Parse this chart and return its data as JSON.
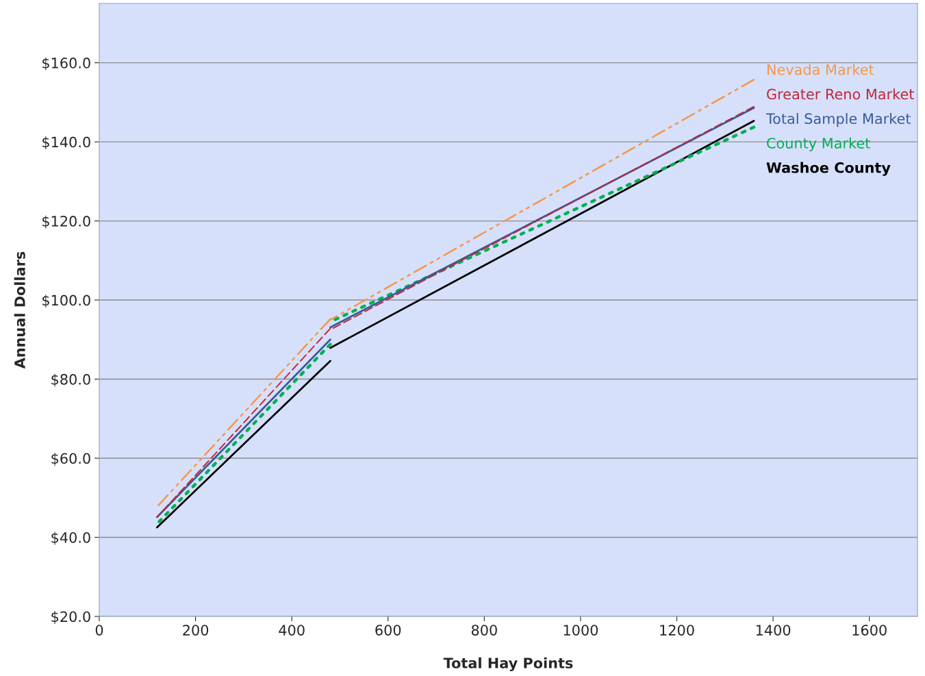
{
  "chart_data": {
    "type": "line",
    "xlabel": "Total Hay Points",
    "ylabel": "Annual Dollars",
    "xlim": [
      0,
      1700
    ],
    "xticks": [
      0,
      200,
      400,
      600,
      800,
      1000,
      1200,
      1400,
      1600
    ],
    "ylim": [
      20,
      175
    ],
    "yticks": [
      {
        "value": 20,
        "label": "$20.0"
      },
      {
        "value": 40,
        "label": "$40.0"
      },
      {
        "value": 60,
        "label": "$60.0"
      },
      {
        "value": 80,
        "label": "$80.0"
      },
      {
        "value": 100,
        "label": "$100.0"
      },
      {
        "value": 120,
        "label": "$120.0"
      },
      {
        "value": 140,
        "label": "$140.0"
      },
      {
        "value": 160,
        "label": "$160.0"
      }
    ],
    "grid": "y",
    "series": [
      {
        "name": "Nevada Market",
        "color": "#f79646",
        "line_style": "dashdot",
        "x": [
          120,
          480,
          480,
          1360
        ],
        "values": [
          47.7,
          95.2,
          95.0,
          155.7
        ]
      },
      {
        "name": "Greater Reno Market",
        "color": "#c0283a",
        "line_style": "dashed",
        "x": [
          120,
          480,
          480,
          1360
        ],
        "values": [
          45.1,
          92.8,
          92.5,
          148.9
        ]
      },
      {
        "name": "Total Sample Market",
        "color": "#3a5a98",
        "line_style": "solid",
        "x": [
          120,
          480,
          480,
          1360
        ],
        "values": [
          45.1,
          90.0,
          93.1,
          148.6
        ]
      },
      {
        "name": "County Market",
        "color": "#00b050",
        "line_style": "dotted",
        "x": [
          120,
          480,
          480,
          1360
        ],
        "values": [
          43.4,
          88.8,
          94.5,
          143.7
        ]
      },
      {
        "name": "Washoe County",
        "color": "#000000",
        "line_style": "solid",
        "x": [
          120,
          480,
          480,
          1360
        ],
        "values": [
          42.5,
          84.6,
          87.9,
          145.3
        ]
      }
    ]
  }
}
